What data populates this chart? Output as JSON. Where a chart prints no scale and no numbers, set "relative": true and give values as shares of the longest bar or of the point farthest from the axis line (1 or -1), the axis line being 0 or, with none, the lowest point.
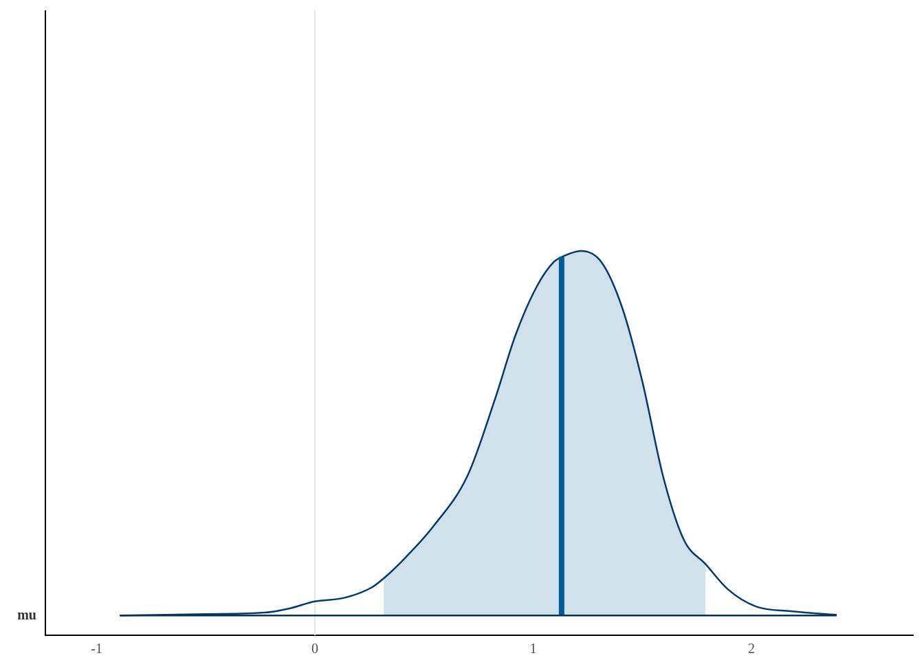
{
  "chart_data": {
    "type": "area",
    "relative": true,
    "ylabel": "mu",
    "xlim": [
      -1.235,
      2.74
    ],
    "xticks": [
      -1,
      0,
      1,
      2
    ],
    "grid": false,
    "legend": false,
    "series": [
      {
        "color": "#d1e1ec",
        "x": [
          0.315,
          0.416,
          0.54,
          0.7,
          0.825,
          0.92,
          1.016,
          1.093,
          1.14,
          1.219,
          1.313,
          1.408,
          1.5,
          1.595,
          1.69,
          1.79
        ],
        "values": [
          0.102,
          0.16,
          0.243,
          0.385,
          0.594,
          0.771,
          0.902,
          0.969,
          0.986,
          1,
          0.969,
          0.844,
          0.642,
          0.382,
          0.208,
          0.141
        ]
      },
      {
        "type": "line",
        "color": "#03396c",
        "x": [
          -0.894,
          -0.5,
          -0.23,
          -0.12,
          0,
          0.13,
          0.26,
          0.315,
          0.416,
          0.54,
          0.7,
          0.825,
          0.92,
          1.016,
          1.093,
          1.14,
          1.219,
          1.313,
          1.408,
          1.5,
          1.595,
          1.69,
          1.79,
          1.89,
          2.02,
          2.18,
          2.39
        ],
        "values": [
          0,
          0.004,
          0.008,
          0.019,
          0.039,
          0.048,
          0.077,
          0.102,
          0.16,
          0.243,
          0.385,
          0.594,
          0.771,
          0.902,
          0.969,
          0.986,
          1,
          0.969,
          0.844,
          0.642,
          0.382,
          0.208,
          0.141,
          0.073,
          0.025,
          0.012,
          0.002
        ]
      },
      {
        "type": "line",
        "color": "#005b96",
        "x": [
          1.13,
          1.13
        ],
        "values": [
          0,
          0.984
        ]
      }
    ],
    "ref_lines": [
      {
        "axis": "x",
        "value": 0,
        "color": "#e5e5e5"
      }
    ]
  }
}
